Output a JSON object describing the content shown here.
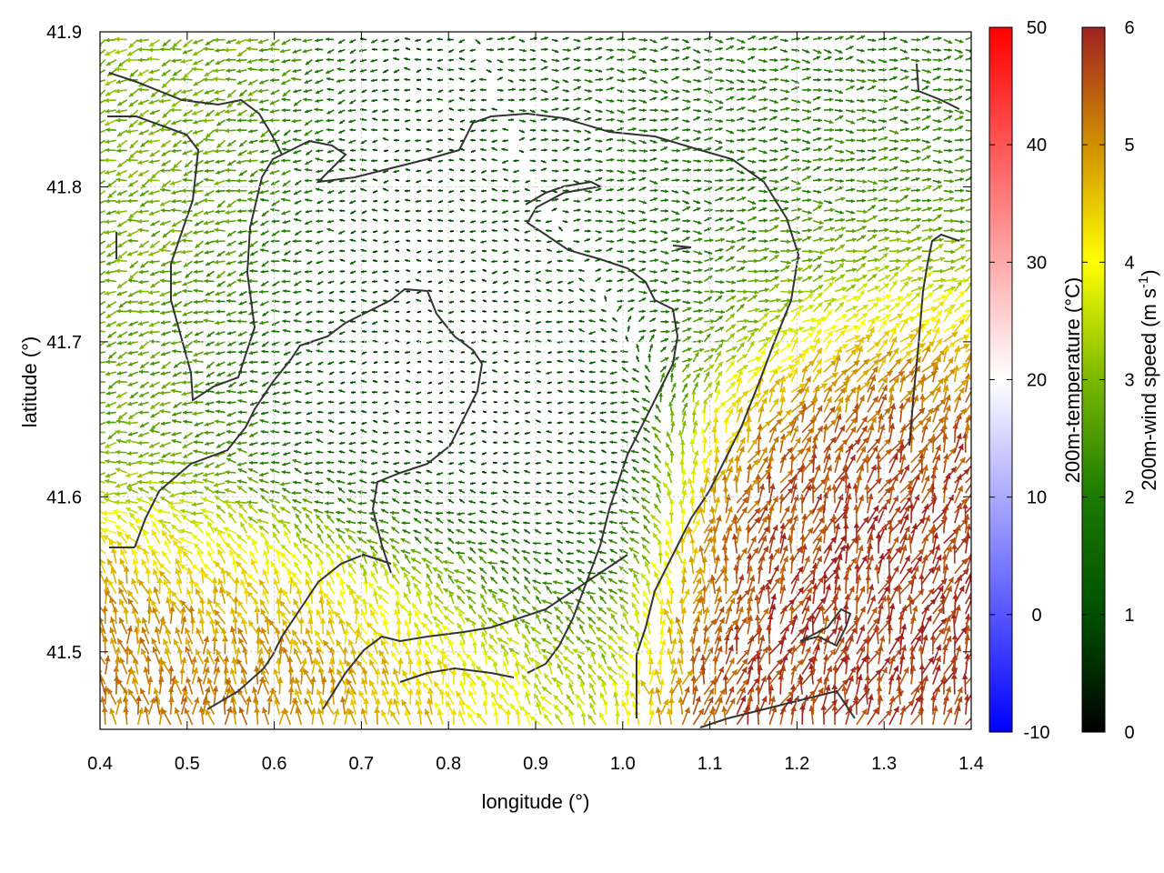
{
  "chart_data": {
    "type": "vector-field",
    "xlabel": "longitude (°)",
    "ylabel": "latitude (°)",
    "xlim": [
      0.4,
      1.4
    ],
    "ylim": [
      41.45,
      41.9
    ],
    "xticks": [
      "0.4",
      "0.5",
      "0.6",
      "0.7",
      "0.8",
      "0.9",
      "1.0",
      "1.1",
      "1.2",
      "1.3",
      "1.4"
    ],
    "xtick_values": [
      0.4,
      0.5,
      0.6,
      0.7,
      0.8,
      0.9,
      1.0,
      1.1,
      1.2,
      1.3,
      1.4
    ],
    "yticks": [
      "41.5",
      "41.6",
      "41.7",
      "41.8",
      "41.9"
    ],
    "ytick_values": [
      41.5,
      41.6,
      41.7,
      41.8,
      41.9
    ],
    "grid": true,
    "colorbars": [
      {
        "name": "temperature",
        "label": "200m-temperature (°C)",
        "range": [
          -10,
          50
        ],
        "ticks": [
          "-10",
          "0",
          "10",
          "20",
          "30",
          "40",
          "50"
        ],
        "tick_values": [
          -10,
          0,
          10,
          20,
          30,
          40,
          50
        ],
        "colors": [
          "#0000ff",
          "#ffffff",
          "#ff0000"
        ]
      },
      {
        "name": "wind_speed",
        "label": "200m-wind speed (m s-1)",
        "label_main": "200m-wind speed (m s",
        "label_sup": "-1",
        "label_end": ")",
        "range": [
          0,
          6
        ],
        "ticks": [
          "0",
          "1",
          "2",
          "3",
          "4",
          "5",
          "6"
        ],
        "tick_values": [
          0,
          1,
          2,
          3,
          4,
          5,
          6
        ],
        "colors": [
          "#000000",
          "#005000",
          "#1a7a00",
          "#7ab800",
          "#ffff00",
          "#d09000",
          "#a02020"
        ]
      }
    ],
    "wind_regions": [
      {
        "name": "south-west high wind",
        "lon": [
          0.4,
          0.8
        ],
        "lat": [
          41.45,
          41.57
        ],
        "speed": 5.5,
        "direction_deg": 0
      },
      {
        "name": "south-east high wind",
        "lon": [
          1.15,
          1.4
        ],
        "lat": [
          41.45,
          41.72
        ],
        "speed": 5.8,
        "direction_deg": 20
      },
      {
        "name": "central calm",
        "lon": [
          0.58,
          0.95
        ],
        "lat": [
          41.55,
          41.8
        ],
        "speed": 0.5,
        "direction_deg": 270
      },
      {
        "name": "north-east easterly",
        "lon": [
          0.95,
          1.4
        ],
        "lat": [
          41.72,
          41.9
        ],
        "speed": 1.8,
        "direction_deg": 90
      },
      {
        "name": "north-west westerly",
        "lon": [
          0.4,
          0.6
        ],
        "lat": [
          41.6,
          41.9
        ],
        "speed": 3.0,
        "direction_deg": 250
      }
    ]
  }
}
